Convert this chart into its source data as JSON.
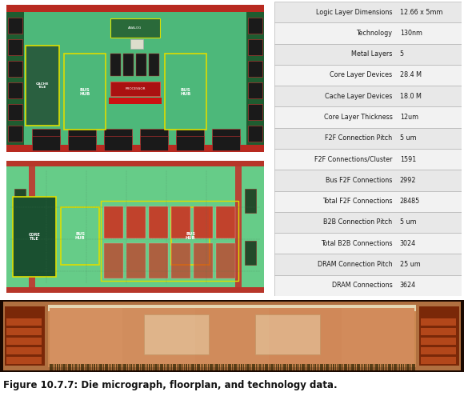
{
  "table_rows": [
    [
      "Logic Layer Dimensions",
      "12.66 x 5mm"
    ],
    [
      "Technology",
      "130nm"
    ],
    [
      "Metal Layers",
      "5"
    ],
    [
      "Core Layer Devices",
      "28.4 M"
    ],
    [
      "Cache Layer Devices",
      "18.0 M"
    ],
    [
      "Core Layer Thickness",
      "12um"
    ],
    [
      "F2F Connection Pitch",
      "5 um"
    ],
    [
      "F2F Connections/Cluster",
      "1591"
    ],
    [
      "Bus F2F Connections",
      "2992"
    ],
    [
      "Total F2F Connections",
      "28485"
    ],
    [
      "B2B Connection Pitch",
      "5 um"
    ],
    [
      "Total B2B Connections",
      "3024"
    ],
    [
      "DRAM Connection Pitch",
      "25 um"
    ],
    [
      "DRAM Connections",
      "3624"
    ]
  ],
  "caption": "Figure 10.7.7: Die micrograph, floorplan, and technology data.",
  "bg_color": "#ffffff",
  "table_row_bg_odd": "#e8e8e8",
  "table_row_bg_even": "#f2f2f2",
  "table_border": "#aaaaaa",
  "floorplan1_green": "#4db87a",
  "floorplan2_green": "#66cc88",
  "black_bg": "#0d0d0d",
  "red_strip": "#cc1111",
  "dark_block": "#1a1a1a",
  "red_block": "#dd2222",
  "yellow_outline": "#dddd00",
  "bus_hub_text": "#ffffff",
  "analog_green": "#2a7a3a",
  "cache_tile_outline": "#dddd00",
  "die_bg": "#b08040",
  "die_main": "#c8906a",
  "die_center": "#d4a070",
  "die_pad_light": "#e8c898",
  "die_left_red": "#8B3010",
  "die_right_circuits": "#c07030",
  "bond_pad_color": "#3a3000",
  "top_bond_light": "#e8e8d0"
}
